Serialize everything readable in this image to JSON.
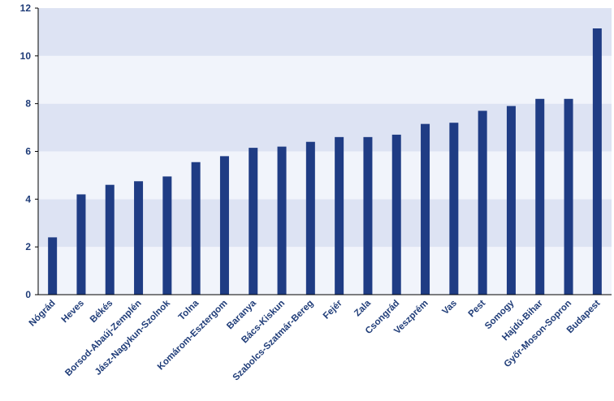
{
  "colors": {
    "bar": "#1f3c84",
    "band_light": "#f1f4fb",
    "band_dark": "#dde3f3",
    "axis": "#000000",
    "label": "#1f3c78"
  },
  "chart_data": {
    "type": "bar",
    "title": "",
    "xlabel": "",
    "ylabel": "",
    "ylim": [
      0,
      12
    ],
    "yticks": [
      0,
      2,
      4,
      6,
      8,
      10,
      12
    ],
    "yticks_text": [
      "0",
      "2",
      "4",
      "6",
      "8",
      "10",
      "12"
    ],
    "grid": "alternating horizontal bands",
    "legend": "none",
    "categories": [
      "Nógrád",
      "Heves",
      "Békés",
      "Borsod-Abaúj-Zemplén",
      "Jász-Nagykun-Szolnok",
      "Tolna",
      "Komárom-Esztergom",
      "Baranya",
      "Bács-Kiskun",
      "Szabolcs-Szatmár-Bereg",
      "Fejér",
      "Zala",
      "Csongrád",
      "Veszprém",
      "Vas",
      "Pest",
      "Somogy",
      "Hajdú-Bihar",
      "Győr-Moson-Sopron",
      "Budapest"
    ],
    "values": [
      2.4,
      4.2,
      4.6,
      4.75,
      4.95,
      5.55,
      5.8,
      6.15,
      6.2,
      6.4,
      6.6,
      6.6,
      6.7,
      7.15,
      7.2,
      7.7,
      7.9,
      8.2,
      8.2,
      11.15
    ]
  }
}
